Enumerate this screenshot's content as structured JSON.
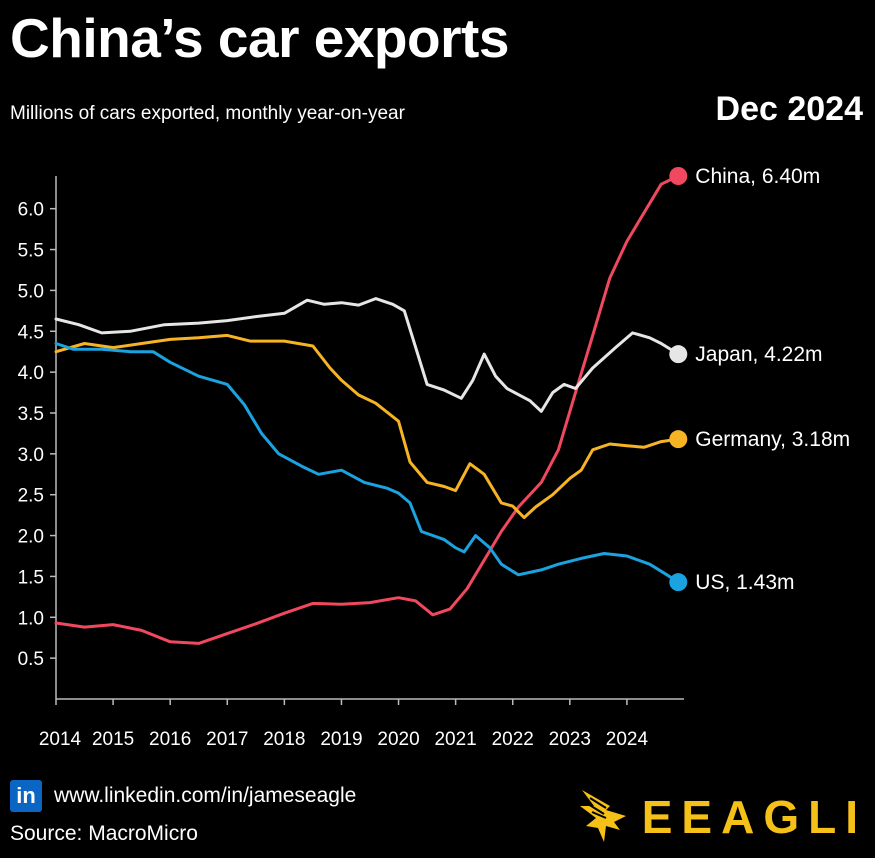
{
  "header": {
    "title": "China’s car exports",
    "subtitle": "Millions of cars exported, monthly year-on-year",
    "date": "Dec 2024"
  },
  "footer": {
    "linkedin_icon_text": "in",
    "link": "www.linkedin.com/in/jameseagle",
    "source": "Source: MacroMicro",
    "brand": "EEAGLI"
  },
  "colors": {
    "China": "#f0485e",
    "Japan": "#e6e6e6",
    "Germany": "#f6b425",
    "US": "#1aa3df",
    "brand": "#f5c018",
    "linkedin": "#0a66c2"
  },
  "chart_data": {
    "type": "line",
    "title": "",
    "xlabel": "",
    "ylabel": "",
    "x_ticks": [
      "2014",
      "2015",
      "2016",
      "2017",
      "2018",
      "2019",
      "2020",
      "2021",
      "2022",
      "2023",
      "2024"
    ],
    "y_ticks": [
      "0.5",
      "1.0",
      "1.5",
      "2.0",
      "2.5",
      "3.0",
      "3.5",
      "4.0",
      "4.5",
      "5.0",
      "5.5",
      "6.0"
    ],
    "xlim": [
      2014.0,
      2025.0
    ],
    "ylim": [
      0.0,
      6.4
    ],
    "grid": false,
    "series": [
      {
        "name": "China",
        "label": "China, 6.40m",
        "points": [
          [
            2014.0,
            0.93
          ],
          [
            2014.5,
            0.88
          ],
          [
            2015.0,
            0.91
          ],
          [
            2015.5,
            0.84
          ],
          [
            2016.0,
            0.7
          ],
          [
            2016.5,
            0.68
          ],
          [
            2017.0,
            0.8
          ],
          [
            2017.5,
            0.92
          ],
          [
            2018.0,
            1.05
          ],
          [
            2018.5,
            1.17
          ],
          [
            2019.0,
            1.16
          ],
          [
            2019.5,
            1.18
          ],
          [
            2020.0,
            1.24
          ],
          [
            2020.3,
            1.2
          ],
          [
            2020.6,
            1.03
          ],
          [
            2020.9,
            1.1
          ],
          [
            2021.2,
            1.35
          ],
          [
            2021.5,
            1.7
          ],
          [
            2021.8,
            2.05
          ],
          [
            2022.1,
            2.35
          ],
          [
            2022.5,
            2.65
          ],
          [
            2022.8,
            3.05
          ],
          [
            2023.1,
            3.75
          ],
          [
            2023.4,
            4.45
          ],
          [
            2023.7,
            5.15
          ],
          [
            2024.0,
            5.6
          ],
          [
            2024.3,
            5.95
          ],
          [
            2024.6,
            6.3
          ],
          [
            2024.9,
            6.4
          ]
        ]
      },
      {
        "name": "Japan",
        "label": "Japan, 4.22m",
        "points": [
          [
            2014.0,
            4.65
          ],
          [
            2014.4,
            4.58
          ],
          [
            2014.8,
            4.48
          ],
          [
            2015.3,
            4.5
          ],
          [
            2015.9,
            4.58
          ],
          [
            2016.5,
            4.6
          ],
          [
            2017.0,
            4.63
          ],
          [
            2017.5,
            4.68
          ],
          [
            2018.0,
            4.72
          ],
          [
            2018.4,
            4.88
          ],
          [
            2018.7,
            4.83
          ],
          [
            2019.0,
            4.85
          ],
          [
            2019.3,
            4.82
          ],
          [
            2019.6,
            4.9
          ],
          [
            2019.9,
            4.83
          ],
          [
            2020.1,
            4.75
          ],
          [
            2020.3,
            4.3
          ],
          [
            2020.5,
            3.85
          ],
          [
            2020.8,
            3.78
          ],
          [
            2021.1,
            3.68
          ],
          [
            2021.3,
            3.9
          ],
          [
            2021.5,
            4.22
          ],
          [
            2021.7,
            3.95
          ],
          [
            2021.9,
            3.8
          ],
          [
            2022.3,
            3.65
          ],
          [
            2022.5,
            3.52
          ],
          [
            2022.7,
            3.75
          ],
          [
            2022.9,
            3.85
          ],
          [
            2023.1,
            3.8
          ],
          [
            2023.4,
            4.05
          ],
          [
            2023.8,
            4.3
          ],
          [
            2024.1,
            4.48
          ],
          [
            2024.4,
            4.42
          ],
          [
            2024.6,
            4.35
          ],
          [
            2024.9,
            4.22
          ]
        ]
      },
      {
        "name": "Germany",
        "label": "Germany, 3.18m",
        "points": [
          [
            2014.0,
            4.25
          ],
          [
            2014.5,
            4.35
          ],
          [
            2015.0,
            4.3
          ],
          [
            2015.5,
            4.35
          ],
          [
            2016.0,
            4.4
          ],
          [
            2016.5,
            4.42
          ],
          [
            2017.0,
            4.45
          ],
          [
            2017.4,
            4.38
          ],
          [
            2018.0,
            4.38
          ],
          [
            2018.5,
            4.32
          ],
          [
            2018.8,
            4.05
          ],
          [
            2019.0,
            3.9
          ],
          [
            2019.3,
            3.72
          ],
          [
            2019.6,
            3.62
          ],
          [
            2020.0,
            3.4
          ],
          [
            2020.2,
            2.9
          ],
          [
            2020.5,
            2.65
          ],
          [
            2020.8,
            2.6
          ],
          [
            2021.0,
            2.55
          ],
          [
            2021.25,
            2.88
          ],
          [
            2021.5,
            2.75
          ],
          [
            2021.8,
            2.4
          ],
          [
            2022.0,
            2.36
          ],
          [
            2022.2,
            2.22
          ],
          [
            2022.4,
            2.35
          ],
          [
            2022.7,
            2.5
          ],
          [
            2023.0,
            2.7
          ],
          [
            2023.2,
            2.8
          ],
          [
            2023.4,
            3.05
          ],
          [
            2023.7,
            3.12
          ],
          [
            2024.0,
            3.1
          ],
          [
            2024.3,
            3.08
          ],
          [
            2024.6,
            3.15
          ],
          [
            2024.9,
            3.18
          ]
        ]
      },
      {
        "name": "US",
        "label": "US, 1.43m",
        "points": [
          [
            2014.0,
            4.35
          ],
          [
            2014.3,
            4.28
          ],
          [
            2014.8,
            4.28
          ],
          [
            2015.3,
            4.25
          ],
          [
            2015.7,
            4.25
          ],
          [
            2016.0,
            4.12
          ],
          [
            2016.5,
            3.95
          ],
          [
            2017.0,
            3.85
          ],
          [
            2017.3,
            3.6
          ],
          [
            2017.6,
            3.25
          ],
          [
            2017.9,
            3.0
          ],
          [
            2018.3,
            2.85
          ],
          [
            2018.6,
            2.75
          ],
          [
            2019.0,
            2.8
          ],
          [
            2019.4,
            2.65
          ],
          [
            2019.8,
            2.58
          ],
          [
            2020.0,
            2.52
          ],
          [
            2020.2,
            2.4
          ],
          [
            2020.4,
            2.05
          ],
          [
            2020.8,
            1.95
          ],
          [
            2021.0,
            1.85
          ],
          [
            2021.15,
            1.8
          ],
          [
            2021.35,
            2.0
          ],
          [
            2021.6,
            1.85
          ],
          [
            2021.8,
            1.65
          ],
          [
            2022.1,
            1.52
          ],
          [
            2022.5,
            1.58
          ],
          [
            2022.8,
            1.65
          ],
          [
            2023.2,
            1.72
          ],
          [
            2023.6,
            1.78
          ],
          [
            2024.0,
            1.75
          ],
          [
            2024.4,
            1.65
          ],
          [
            2024.7,
            1.52
          ],
          [
            2024.9,
            1.43
          ]
        ]
      }
    ]
  }
}
